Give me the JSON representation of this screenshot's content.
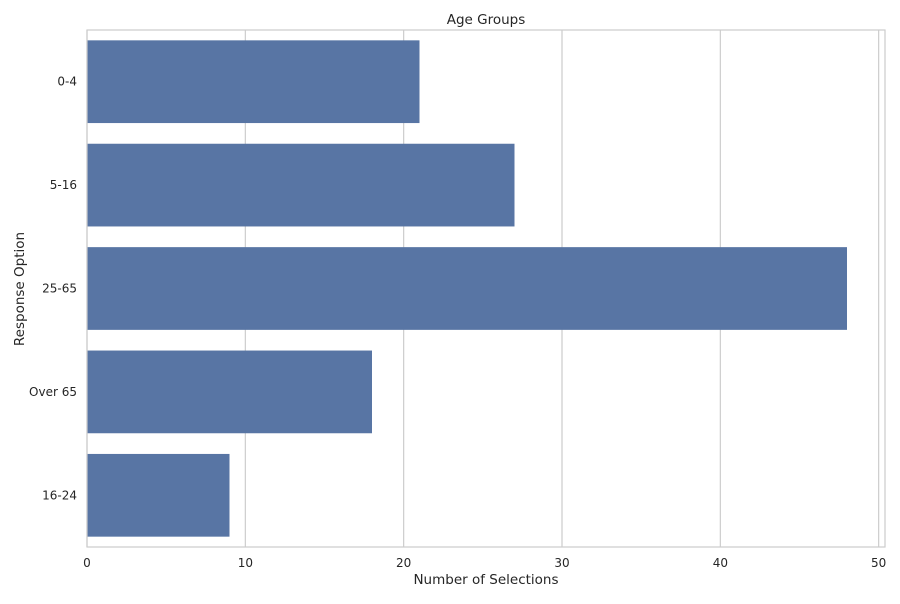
{
  "chart_data": {
    "type": "bar",
    "orientation": "horizontal",
    "title": "Age Groups",
    "xlabel": "Number of Selections",
    "ylabel": "Response Option",
    "categories": [
      "0-4",
      "5-16",
      "25-65",
      "Over 65",
      "16-24"
    ],
    "values": [
      21,
      27,
      48,
      18,
      9
    ],
    "xlim": [
      0,
      50.4
    ],
    "xticks": [
      0,
      10,
      20,
      30,
      40,
      50
    ],
    "grid": true,
    "bar_color": "#5875a4",
    "grid_color": "#cccccc"
  }
}
